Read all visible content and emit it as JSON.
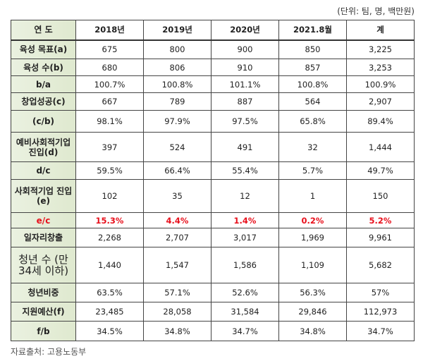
{
  "unit_note": "(단위: 팀, 명, 백만원)",
  "header": [
    "연 도",
    "2018년",
    "2019년",
    "2020년",
    "2021.8월",
    "계"
  ],
  "rows": [
    {
      "label": "육성 목표(a)",
      "values": [
        "675",
        "800",
        "900",
        "850",
        "3,225"
      ]
    },
    {
      "label": "육성 수(b)",
      "values": [
        "680",
        "806",
        "910",
        "857",
        "3,253"
      ]
    },
    {
      "label": "b/a",
      "values": [
        "100.7%",
        "100.8%",
        "101.1%",
        "100.8%",
        "100.9%"
      ]
    },
    {
      "label": "창업성공(c)",
      "values": [
        "667",
        "789",
        "887",
        "564",
        "2,907"
      ]
    },
    {
      "label": "(c/b)",
      "values": [
        "98.1%",
        "97.9%",
        "97.5%",
        "65.8%",
        "89.4%"
      ]
    },
    {
      "label": "예비사회적기업 진입(d)",
      "values": [
        "397",
        "524",
        "491",
        "32",
        "1,444"
      ]
    },
    {
      "label": "d/c",
      "values": [
        "59.5%",
        "66.4%",
        "55.4%",
        "5.7%",
        "49.7%"
      ]
    },
    {
      "label": "사회적기업 진입(e)",
      "values": [
        "102",
        "35",
        "12",
        "1",
        "150"
      ]
    },
    {
      "label": "e/c",
      "values": [
        "15.3%",
        "4.4%",
        "1.4%",
        "0.2%",
        "5.2%"
      ]
    },
    {
      "label": "일자리창출",
      "values": [
        "2,268",
        "2,707",
        "3,017",
        "1,969",
        "9,961"
      ]
    },
    {
      "label": "청년 수 (만 34세 이하)",
      "values": [
        "1,440",
        "1,547",
        "1,586",
        "1,109",
        "5,682"
      ]
    },
    {
      "label": "청년비중",
      "values": [
        "63.5%",
        "57.1%",
        "52.6%",
        "56.3%",
        "57%"
      ]
    },
    {
      "label": "지원예산(f)",
      "values": [
        "23,485",
        "28,058",
        "31,584",
        "29,846",
        "112,973"
      ]
    },
    {
      "label": "f/b",
      "values": [
        "34.5%",
        "34.8%",
        "34.7%",
        "34.8%",
        "34.7%"
      ]
    }
  ],
  "highlight_color": "#e8101c",
  "source": "자료출처: 고용노동부"
}
